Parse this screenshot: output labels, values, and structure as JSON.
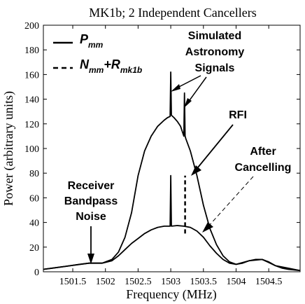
{
  "chart_data": {
    "type": "line",
    "title": "MK1b; 2 Independent Cancellers",
    "xlabel": "Frequency (MHz)",
    "ylabel": "Power (arbitrary units)",
    "xlim": [
      1501.05,
      1504.98
    ],
    "ylim": [
      0,
      200
    ],
    "grid": false,
    "legend_position": "top-left",
    "xticks": [
      1501.5,
      1502,
      1502.5,
      1503,
      1503.5,
      1504,
      1504.5
    ],
    "xtick_labels": [
      "1501.5",
      "1502",
      "1502.5",
      "1503",
      "1503.5",
      "1504",
      "1504.5"
    ],
    "yticks": [
      0,
      20,
      40,
      60,
      80,
      100,
      120,
      140,
      160,
      180,
      200
    ],
    "ytick_labels": [
      "0",
      "20",
      "40",
      "60",
      "80",
      "100",
      "120",
      "140",
      "160",
      "180",
      "200"
    ],
    "legend": [
      {
        "label_main": "P",
        "label_sub": "mm",
        "style": "solid"
      },
      {
        "label_main": "N",
        "label_sub": "mm",
        "label_plus": "+R",
        "label_sub2": "mk1b",
        "style": "dashed"
      }
    ],
    "series": [
      {
        "style": "solid",
        "x": [
          1501.05,
          1501.2,
          1501.4,
          1501.6,
          1501.75,
          1501.85,
          1501.95,
          1502.1,
          1502.2,
          1502.3,
          1502.4,
          1502.5,
          1502.6,
          1502.7,
          1502.8,
          1502.9,
          1502.95,
          1502.99,
          1503.0,
          1503.01,
          1503.05,
          1503.1,
          1503.15,
          1503.2,
          1503.21,
          1503.22,
          1503.23,
          1503.3,
          1503.4,
          1503.5,
          1503.6,
          1503.7,
          1503.8,
          1503.9,
          1504.0,
          1504.1,
          1504.2,
          1504.3,
          1504.4,
          1504.5,
          1504.6,
          1504.7,
          1504.8,
          1504.98
        ],
        "y": [
          2,
          3,
          4.5,
          6,
          7,
          7,
          7,
          10,
          16,
          28,
          48,
          78,
          98,
          110,
          118,
          123,
          125,
          126,
          162,
          127,
          125,
          122,
          118,
          110,
          145,
          110,
          108,
          98,
          78,
          54,
          35,
          22,
          13,
          8,
          6,
          7,
          9,
          10,
          10,
          8,
          5,
          3,
          2,
          1
        ]
      },
      {
        "style": "solid",
        "x": [
          1501.05,
          1501.4,
          1501.75,
          1501.95,
          1502.1,
          1502.2,
          1502.3,
          1502.4,
          1502.5,
          1502.6,
          1502.7,
          1502.8,
          1502.9,
          1502.99,
          1503.0,
          1503.01,
          1503.1,
          1503.2,
          1503.3,
          1503.4,
          1503.5,
          1503.6,
          1503.7,
          1503.8,
          1503.9,
          1504.0,
          1504.2,
          1504.4,
          1504.6,
          1504.98
        ],
        "y": [
          2,
          4.5,
          7,
          7,
          9,
          13,
          18,
          23,
          27,
          31,
          34,
          36,
          37,
          37,
          78,
          37,
          37.5,
          37,
          36,
          33,
          28,
          21,
          15,
          10,
          7,
          6,
          9,
          10,
          5,
          1
        ]
      },
      {
        "style": "dashed",
        "x": [
          1503.22,
          1503.22
        ],
        "y": [
          31,
          78
        ]
      }
    ],
    "annotations": [
      {
        "text_lines": [
          "Simulated",
          "Astronomy",
          "Signals"
        ]
      },
      {
        "text_lines": [
          "RFI"
        ]
      },
      {
        "text_lines": [
          "After",
          "Cancelling"
        ]
      },
      {
        "text_lines": [
          "Receiver",
          "Bandpass",
          "Noise"
        ]
      }
    ]
  }
}
